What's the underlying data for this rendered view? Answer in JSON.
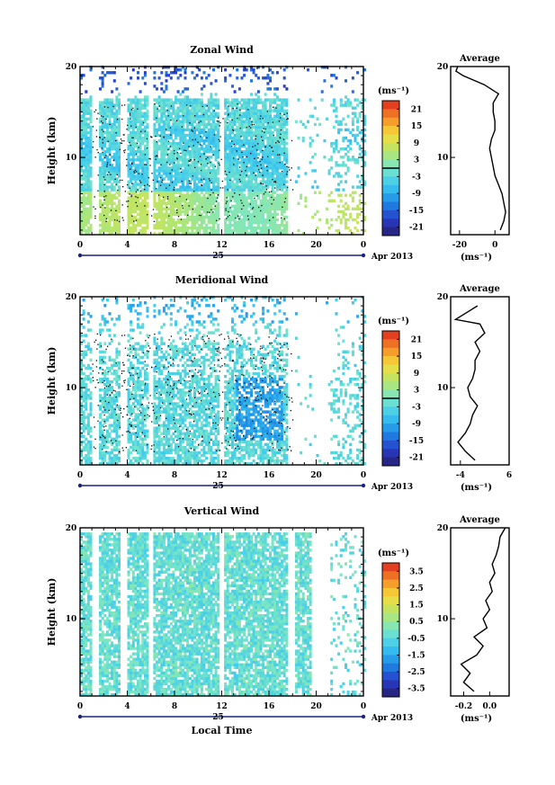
{
  "chart_data": [
    {
      "type": "heatmap",
      "title": "Zonal Wind",
      "ylabel": "Height (km)",
      "xlabel": "",
      "date_label": "25",
      "month_label": "Apr 2013",
      "x_ticks": [
        "0",
        "4",
        "8",
        "12",
        "16",
        "20",
        "0"
      ],
      "y_ticks": [
        "20",
        "10"
      ],
      "xlim": [
        0,
        24
      ],
      "ylim": [
        1.5,
        20
      ],
      "colorbar": {
        "unit_label": "(ms⁻¹)",
        "ticks": [
          "21",
          "15",
          "9",
          "3",
          "-3",
          "-9",
          "-15",
          "-21"
        ],
        "range": [
          -24,
          24
        ],
        "zero_line": true
      },
      "average": {
        "title": "Average",
        "xlabel": "(ms⁻¹)",
        "x_ticks": [
          "-20",
          "0"
        ],
        "y_ticks": [
          "20",
          "10"
        ],
        "xlim": [
          -25,
          8
        ],
        "profile": [
          [
            2,
            3
          ],
          [
            3,
            5
          ],
          [
            4,
            6
          ],
          [
            5,
            5
          ],
          [
            6,
            4
          ],
          [
            7,
            2
          ],
          [
            8,
            0
          ],
          [
            9,
            -1
          ],
          [
            10,
            -2
          ],
          [
            11,
            -3
          ],
          [
            12,
            -2
          ],
          [
            13,
            0
          ],
          [
            14,
            0
          ],
          [
            15,
            -1
          ],
          [
            16,
            -1
          ],
          [
            17,
            2
          ],
          [
            18,
            -6
          ],
          [
            19,
            -18
          ],
          [
            19.5,
            -22
          ],
          [
            20,
            -21
          ]
        ]
      }
    },
    {
      "type": "heatmap",
      "title": "Meridional Wind",
      "ylabel": "Height (km)",
      "xlabel": "",
      "date_label": "25",
      "month_label": "Apr 2013",
      "x_ticks": [
        "0",
        "4",
        "8",
        "12",
        "16",
        "20",
        "0"
      ],
      "y_ticks": [
        "20",
        "10"
      ],
      "xlim": [
        0,
        24
      ],
      "ylim": [
        1.5,
        20
      ],
      "colorbar": {
        "unit_label": "(ms⁻¹)",
        "ticks": [
          "21",
          "15",
          "9",
          "3",
          "-3",
          "-9",
          "-15",
          "-21"
        ],
        "range": [
          -24,
          24
        ],
        "zero_line": true
      },
      "average": {
        "title": "Average",
        "xlabel": "(ms⁻¹)",
        "x_ticks": [
          "-4",
          "6"
        ],
        "y_ticks": [
          "20",
          "10"
        ],
        "xlim": [
          -6,
          6
        ],
        "profile": [
          [
            2,
            -1
          ],
          [
            3,
            -3
          ],
          [
            4,
            -4.5
          ],
          [
            5,
            -3
          ],
          [
            6,
            -2
          ],
          [
            7,
            -1.5
          ],
          [
            8,
            -0.5
          ],
          [
            9,
            -2
          ],
          [
            10,
            -2.5
          ],
          [
            11,
            -1.5
          ],
          [
            12,
            -1
          ],
          [
            13,
            -1
          ],
          [
            14,
            0
          ],
          [
            15,
            -1
          ],
          [
            16,
            1
          ],
          [
            17,
            0
          ],
          [
            17.5,
            -5
          ],
          [
            18.5,
            -2
          ],
          [
            19,
            -0.5
          ]
        ]
      }
    },
    {
      "type": "heatmap",
      "title": "Vertical Wind",
      "ylabel": "Height (km)",
      "xlabel": "Local Time",
      "date_label": "25",
      "month_label": "Apr 2013",
      "x_ticks": [
        "0",
        "4",
        "8",
        "12",
        "16",
        "20",
        "0"
      ],
      "y_ticks": [
        "20",
        "10"
      ],
      "xlim": [
        0,
        24
      ],
      "ylim": [
        1.5,
        20
      ],
      "colorbar": {
        "unit_label": "(ms⁻¹)",
        "ticks": [
          "3.5",
          "2.5",
          "1.5",
          "0.5",
          "-0.5",
          "-1.5",
          "-2.5",
          "-3.5"
        ],
        "range": [
          -4,
          4
        ],
        "zero_line": false
      },
      "average": {
        "title": "Average",
        "xlabel": "(ms⁻¹)",
        "x_ticks": [
          "-0.2",
          "0.0"
        ],
        "y_ticks": [
          "20",
          "10"
        ],
        "xlim": [
          -0.3,
          0.15
        ],
        "profile": [
          [
            2,
            -0.12
          ],
          [
            3,
            -0.2
          ],
          [
            4,
            -0.15
          ],
          [
            5,
            -0.22
          ],
          [
            6,
            -0.1
          ],
          [
            7,
            -0.05
          ],
          [
            8,
            -0.12
          ],
          [
            9,
            -0.02
          ],
          [
            10,
            -0.05
          ],
          [
            11,
            0.0
          ],
          [
            12,
            -0.03
          ],
          [
            13,
            0.02
          ],
          [
            14,
            0.0
          ],
          [
            15,
            0.04
          ],
          [
            16,
            0.02
          ],
          [
            17,
            0.05
          ],
          [
            18,
            0.07
          ],
          [
            19,
            0.08
          ],
          [
            20,
            0.12
          ]
        ]
      }
    }
  ]
}
